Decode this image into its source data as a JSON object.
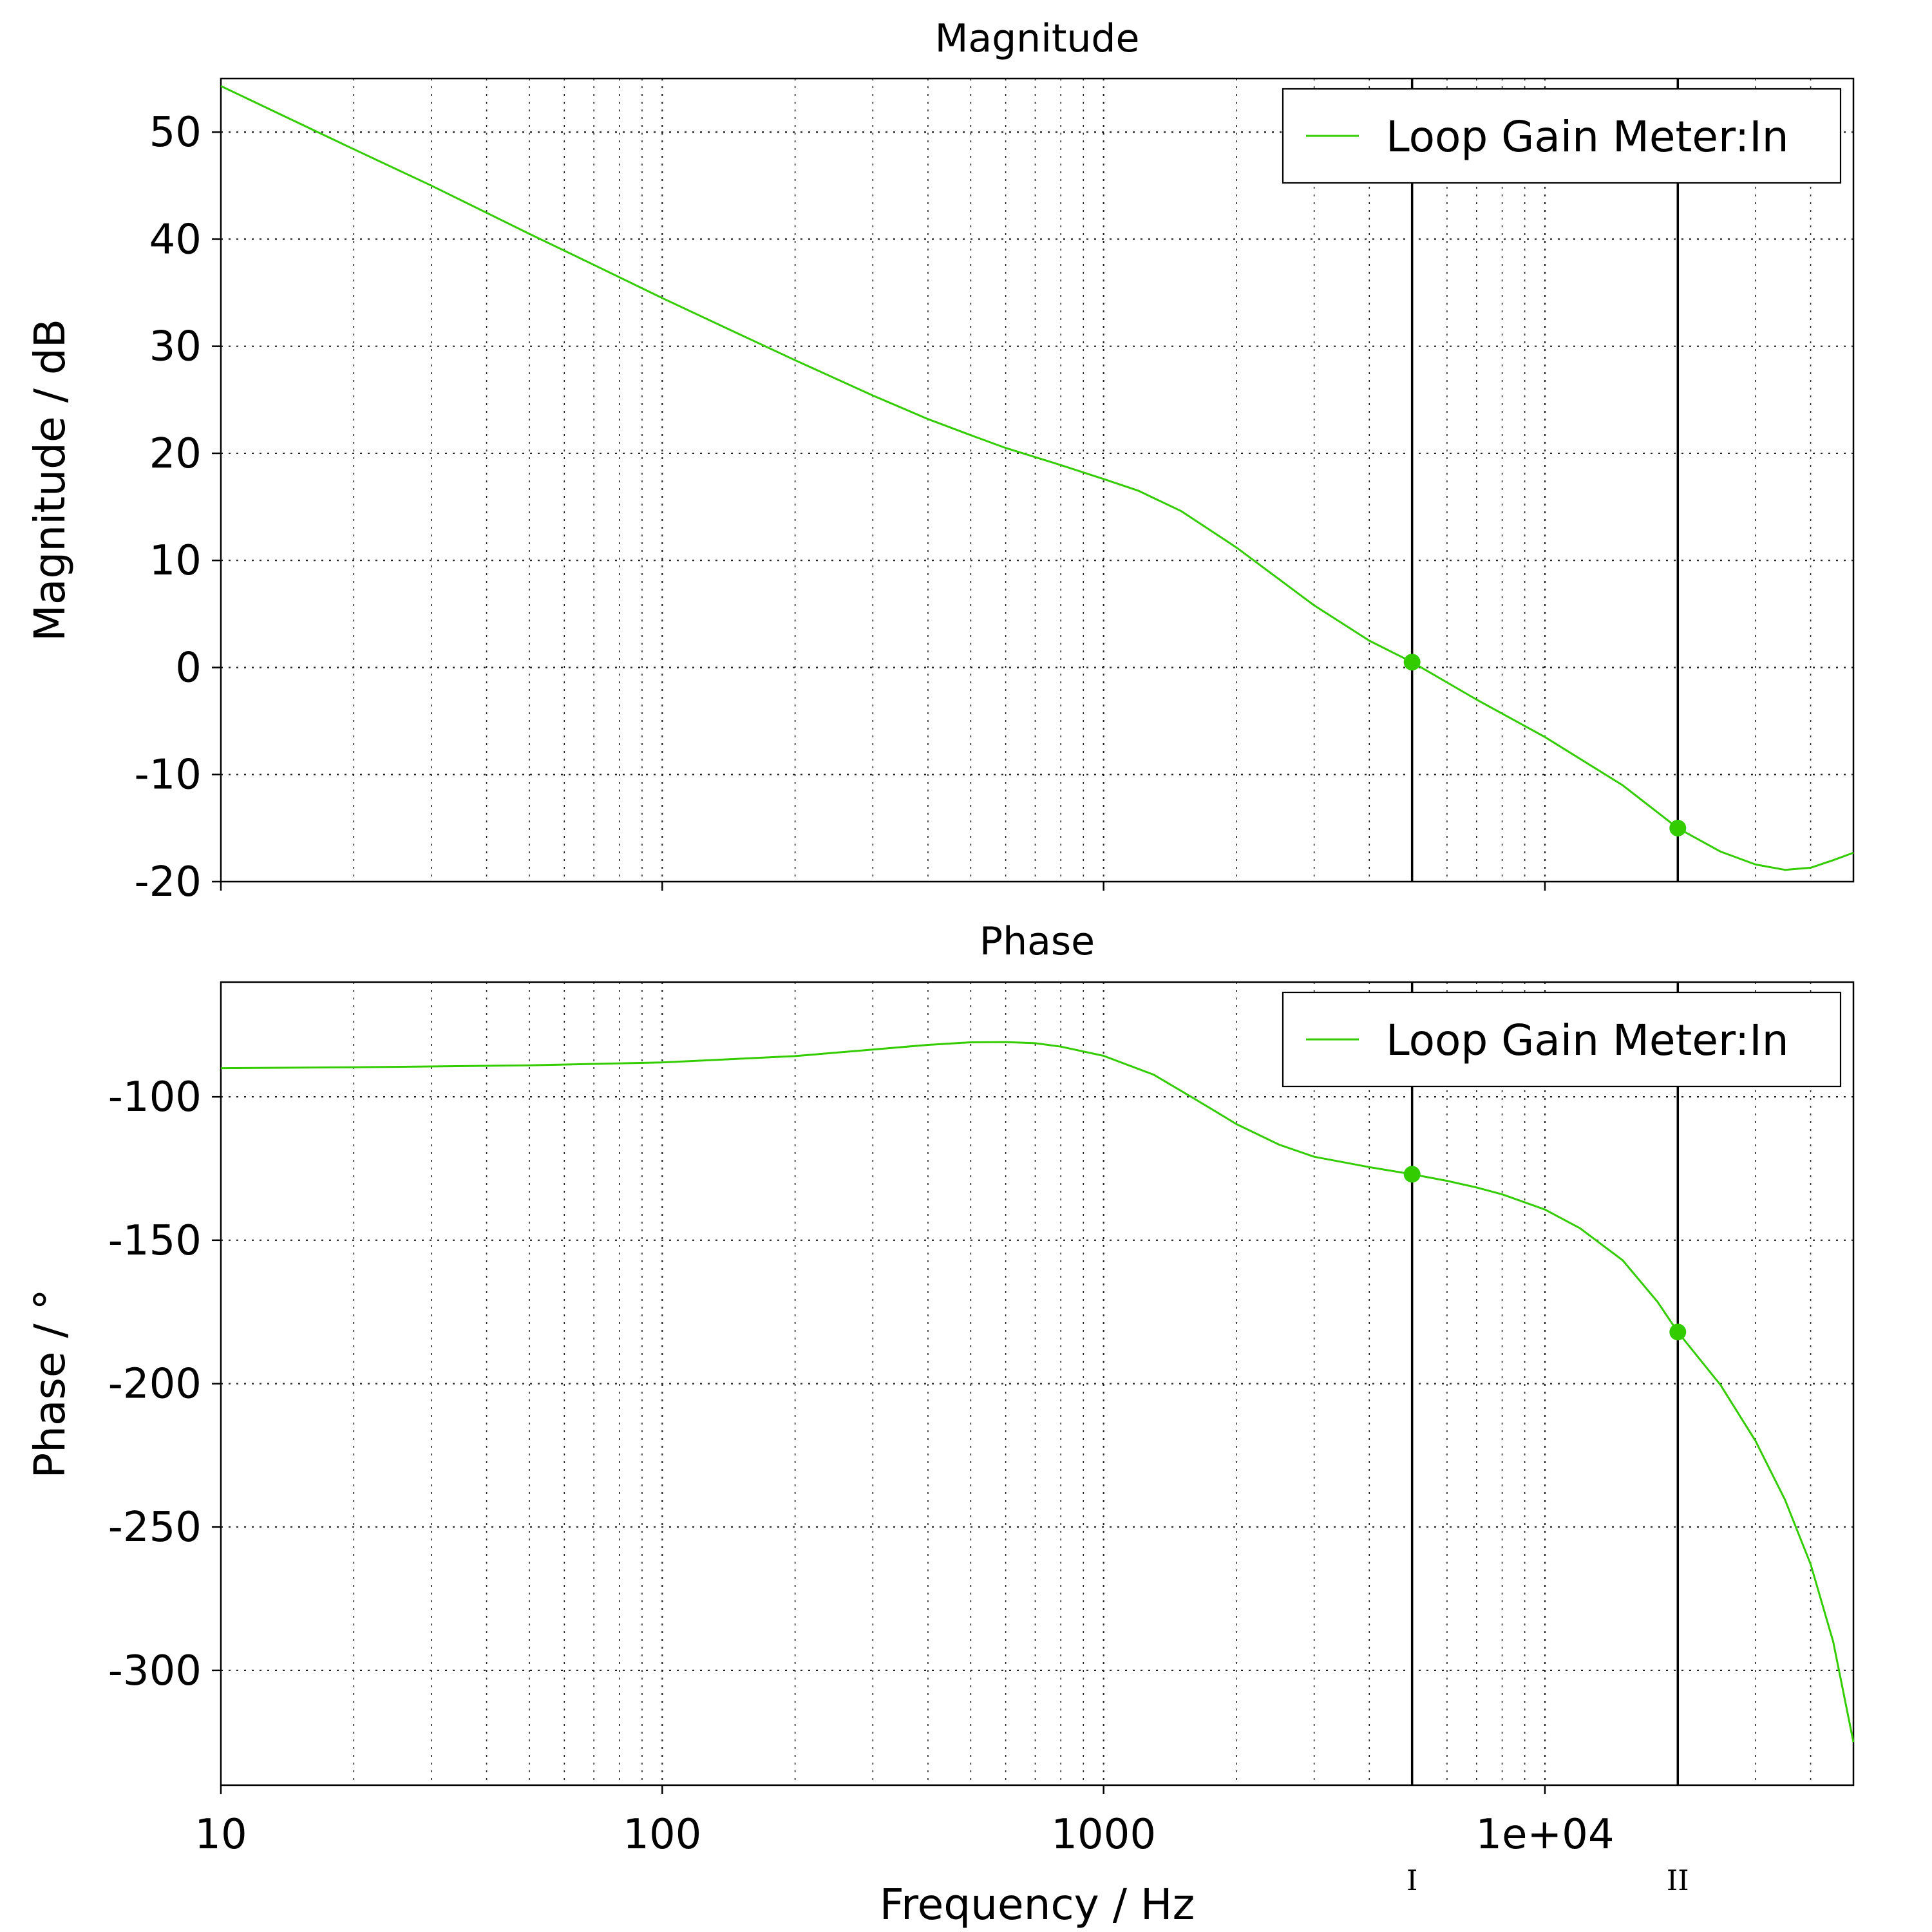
{
  "chart_data": [
    {
      "type": "line",
      "title": "Magnitude",
      "xlabel": "",
      "ylabel": "Magnitude / dB",
      "xscale": "log",
      "xlim": [
        10,
        50000
      ],
      "ylim": [
        -20,
        55
      ],
      "x_ticks": [
        10,
        100,
        1000,
        10000
      ],
      "y_ticks": [
        -20,
        -10,
        0,
        10,
        20,
        30,
        40,
        50
      ],
      "grid": true,
      "legend": "top-right",
      "series": [
        {
          "name": "Loop Gain Meter:In",
          "color": "#33cc00",
          "points": [
            [
              10,
              54.3
            ],
            [
              20,
              48.4
            ],
            [
              30,
              45.0
            ],
            [
              50,
              40.5
            ],
            [
              70,
              37.6
            ],
            [
              100,
              34.5
            ],
            [
              150,
              31.1
            ],
            [
              200,
              28.7
            ],
            [
              300,
              25.4
            ],
            [
              400,
              23.2
            ],
            [
              500,
              21.7
            ],
            [
              600,
              20.5
            ],
            [
              800,
              18.9
            ],
            [
              1000,
              17.6
            ],
            [
              1200,
              16.5
            ],
            [
              1500,
              14.6
            ],
            [
              2000,
              11.2
            ],
            [
              3000,
              5.8
            ],
            [
              4000,
              2.5
            ],
            [
              5000,
              0.5
            ],
            [
              7000,
              -3.0
            ],
            [
              10000,
              -6.5
            ],
            [
              15000,
              -11.0
            ],
            [
              20000,
              -15.0
            ],
            [
              25000,
              -17.2
            ],
            [
              30000,
              -18.4
            ],
            [
              35000,
              -18.9
            ],
            [
              40000,
              -18.7
            ],
            [
              45000,
              -18.0
            ],
            [
              50000,
              -17.3
            ]
          ]
        }
      ],
      "cursors": [
        {
          "label": "I",
          "x": 5000,
          "y": 0.5
        },
        {
          "label": "II",
          "x": 20000,
          "y": -15.0
        }
      ]
    },
    {
      "type": "line",
      "title": "Phase",
      "xlabel": "Frequency / Hz",
      "ylabel": "Phase / °",
      "xscale": "log",
      "xlim": [
        10,
        50000
      ],
      "ylim": [
        -340,
        -60
      ],
      "x_ticks": [
        10,
        100,
        1000,
        10000
      ],
      "x_tick_labels": [
        "10",
        "100",
        "1000",
        "1e+04"
      ],
      "y_ticks": [
        -300,
        -250,
        -200,
        -150,
        -100
      ],
      "grid": true,
      "legend": "top-right",
      "series": [
        {
          "name": "Loop Gain Meter:In",
          "color": "#33cc00",
          "points": [
            [
              10,
              -90.0
            ],
            [
              20,
              -89.7
            ],
            [
              50,
              -89.0
            ],
            [
              100,
              -88.0
            ],
            [
              200,
              -85.8
            ],
            [
              300,
              -83.5
            ],
            [
              400,
              -81.9
            ],
            [
              500,
              -81.0
            ],
            [
              600,
              -80.9
            ],
            [
              700,
              -81.3
            ],
            [
              800,
              -82.5
            ],
            [
              1000,
              -85.7
            ],
            [
              1300,
              -92.3
            ],
            [
              1600,
              -100.5
            ],
            [
              2000,
              -109.5
            ],
            [
              2500,
              -116.7
            ],
            [
              3000,
              -120.9
            ],
            [
              4000,
              -124.5
            ],
            [
              5000,
              -127.0
            ],
            [
              6000,
              -129.3
            ],
            [
              7000,
              -131.6
            ],
            [
              8000,
              -134.0
            ],
            [
              10000,
              -139.3
            ],
            [
              12000,
              -145.8
            ],
            [
              15000,
              -157.0
            ],
            [
              18000,
              -171.5
            ],
            [
              20000,
              -182.0
            ],
            [
              25000,
              -200.5
            ],
            [
              30000,
              -220.0
            ],
            [
              35000,
              -240.5
            ],
            [
              40000,
              -263.0
            ],
            [
              45000,
              -290.0
            ],
            [
              50000,
              -325.0
            ]
          ]
        }
      ],
      "cursors": [
        {
          "label": "I",
          "x": 5000,
          "y": -127.0
        },
        {
          "label": "II",
          "x": 20000,
          "y": -182.0
        }
      ]
    }
  ]
}
